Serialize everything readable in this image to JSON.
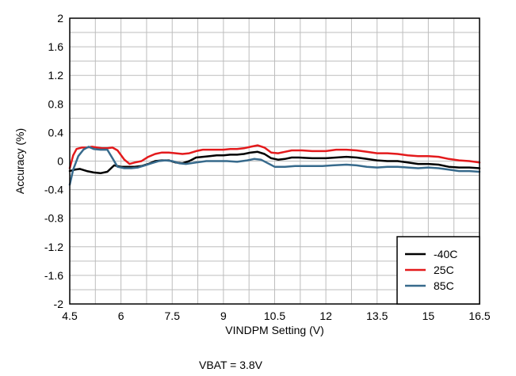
{
  "chart_data": {
    "type": "line",
    "title": "",
    "xlabel": "VINDPM Setting (V)",
    "ylabel": "Accuracy (%)",
    "caption": "VBAT = 3.8V",
    "xlim": [
      4.5,
      16.5
    ],
    "ylim": [
      -2,
      2
    ],
    "xticks": [
      4.5,
      6,
      7.5,
      9,
      10.5,
      12,
      13.5,
      15,
      16.5
    ],
    "yticks": [
      2,
      1.6,
      1.2,
      0.8,
      0.4,
      0,
      -0.4,
      -0.8,
      -1.2,
      -1.6,
      -2
    ],
    "ytick_labels": [
      "2",
      "1.6",
      "1.2",
      "0.8",
      "0.4",
      "0",
      "-0.4",
      "-0.8",
      "-1.2",
      "-1.6",
      "-2"
    ],
    "x_minor_step": 0.75,
    "y_minor_step": 0.2,
    "grid": true,
    "legend_position": "bottom-right",
    "series": [
      {
        "name": "-40C",
        "color": "#000000",
        "points": [
          [
            4.5,
            -0.14
          ],
          [
            4.65,
            -0.12
          ],
          [
            4.8,
            -0.11
          ],
          [
            5.0,
            -0.14
          ],
          [
            5.2,
            -0.16
          ],
          [
            5.4,
            -0.17
          ],
          [
            5.6,
            -0.15
          ],
          [
            5.8,
            -0.06
          ],
          [
            6.0,
            -0.08
          ],
          [
            6.2,
            -0.08
          ],
          [
            6.4,
            -0.08
          ],
          [
            6.6,
            -0.07
          ],
          [
            6.8,
            -0.04
          ],
          [
            7.0,
            0.0
          ],
          [
            7.2,
            0.01
          ],
          [
            7.4,
            0.01
          ],
          [
            7.6,
            -0.02
          ],
          [
            7.8,
            -0.03
          ],
          [
            8.0,
            0.0
          ],
          [
            8.2,
            0.05
          ],
          [
            8.4,
            0.06
          ],
          [
            8.6,
            0.07
          ],
          [
            8.8,
            0.08
          ],
          [
            9.0,
            0.08
          ],
          [
            9.2,
            0.09
          ],
          [
            9.4,
            0.09
          ],
          [
            9.6,
            0.1
          ],
          [
            9.8,
            0.12
          ],
          [
            10.0,
            0.13
          ],
          [
            10.2,
            0.1
          ],
          [
            10.4,
            0.04
          ],
          [
            10.6,
            0.02
          ],
          [
            10.8,
            0.03
          ],
          [
            11.0,
            0.05
          ],
          [
            11.2,
            0.05
          ],
          [
            11.6,
            0.04
          ],
          [
            12.0,
            0.04
          ],
          [
            12.3,
            0.05
          ],
          [
            12.6,
            0.06
          ],
          [
            12.9,
            0.05
          ],
          [
            13.2,
            0.03
          ],
          [
            13.5,
            0.01
          ],
          [
            13.8,
            0.0
          ],
          [
            14.1,
            0.0
          ],
          [
            14.4,
            -0.02
          ],
          [
            14.7,
            -0.04
          ],
          [
            15.0,
            -0.04
          ],
          [
            15.3,
            -0.05
          ],
          [
            15.6,
            -0.08
          ],
          [
            15.9,
            -0.09
          ],
          [
            16.2,
            -0.09
          ],
          [
            16.5,
            -0.1
          ]
        ]
      },
      {
        "name": "25C",
        "color": "#e31a1c",
        "points": [
          [
            4.5,
            -0.1
          ],
          [
            4.6,
            0.08
          ],
          [
            4.7,
            0.17
          ],
          [
            4.85,
            0.19
          ],
          [
            5.0,
            0.19
          ],
          [
            5.15,
            0.2
          ],
          [
            5.3,
            0.19
          ],
          [
            5.45,
            0.18
          ],
          [
            5.6,
            0.18
          ],
          [
            5.75,
            0.19
          ],
          [
            5.9,
            0.15
          ],
          [
            6.1,
            0.02
          ],
          [
            6.25,
            -0.04
          ],
          [
            6.4,
            -0.02
          ],
          [
            6.6,
            0.0
          ],
          [
            6.8,
            0.06
          ],
          [
            7.0,
            0.1
          ],
          [
            7.2,
            0.12
          ],
          [
            7.4,
            0.12
          ],
          [
            7.6,
            0.11
          ],
          [
            7.8,
            0.1
          ],
          [
            8.0,
            0.11
          ],
          [
            8.2,
            0.14
          ],
          [
            8.4,
            0.16
          ],
          [
            8.6,
            0.16
          ],
          [
            8.8,
            0.16
          ],
          [
            9.0,
            0.16
          ],
          [
            9.2,
            0.17
          ],
          [
            9.4,
            0.17
          ],
          [
            9.6,
            0.18
          ],
          [
            9.8,
            0.2
          ],
          [
            10.0,
            0.22
          ],
          [
            10.2,
            0.19
          ],
          [
            10.4,
            0.12
          ],
          [
            10.6,
            0.11
          ],
          [
            10.8,
            0.13
          ],
          [
            11.0,
            0.15
          ],
          [
            11.3,
            0.15
          ],
          [
            11.6,
            0.14
          ],
          [
            12.0,
            0.14
          ],
          [
            12.3,
            0.16
          ],
          [
            12.6,
            0.16
          ],
          [
            12.9,
            0.15
          ],
          [
            13.2,
            0.13
          ],
          [
            13.5,
            0.11
          ],
          [
            13.8,
            0.11
          ],
          [
            14.1,
            0.1
          ],
          [
            14.4,
            0.08
          ],
          [
            14.7,
            0.07
          ],
          [
            15.0,
            0.07
          ],
          [
            15.3,
            0.06
          ],
          [
            15.6,
            0.03
          ],
          [
            15.9,
            0.01
          ],
          [
            16.2,
            0.0
          ],
          [
            16.5,
            -0.02
          ]
        ]
      },
      {
        "name": "85C",
        "color": "#376a8c",
        "points": [
          [
            4.5,
            -0.33
          ],
          [
            4.6,
            -0.12
          ],
          [
            4.75,
            0.07
          ],
          [
            4.9,
            0.16
          ],
          [
            5.05,
            0.2
          ],
          [
            5.2,
            0.17
          ],
          [
            5.4,
            0.16
          ],
          [
            5.6,
            0.16
          ],
          [
            5.75,
            0.04
          ],
          [
            5.9,
            -0.08
          ],
          [
            6.1,
            -0.1
          ],
          [
            6.3,
            -0.1
          ],
          [
            6.5,
            -0.09
          ],
          [
            6.7,
            -0.06
          ],
          [
            6.9,
            -0.03
          ],
          [
            7.1,
            0.0
          ],
          [
            7.3,
            0.01
          ],
          [
            7.5,
            0.0
          ],
          [
            7.7,
            -0.03
          ],
          [
            7.9,
            -0.04
          ],
          [
            8.2,
            -0.02
          ],
          [
            8.5,
            0.0
          ],
          [
            8.8,
            0.0
          ],
          [
            9.1,
            0.0
          ],
          [
            9.4,
            -0.01
          ],
          [
            9.7,
            0.01
          ],
          [
            9.9,
            0.03
          ],
          [
            10.1,
            0.02
          ],
          [
            10.3,
            -0.03
          ],
          [
            10.5,
            -0.08
          ],
          [
            10.8,
            -0.08
          ],
          [
            11.1,
            -0.07
          ],
          [
            11.5,
            -0.07
          ],
          [
            11.9,
            -0.07
          ],
          [
            12.2,
            -0.06
          ],
          [
            12.6,
            -0.05
          ],
          [
            12.9,
            -0.06
          ],
          [
            13.2,
            -0.08
          ],
          [
            13.5,
            -0.09
          ],
          [
            13.8,
            -0.08
          ],
          [
            14.1,
            -0.08
          ],
          [
            14.4,
            -0.09
          ],
          [
            14.7,
            -0.1
          ],
          [
            15.0,
            -0.09
          ],
          [
            15.3,
            -0.1
          ],
          [
            15.6,
            -0.12
          ],
          [
            15.9,
            -0.14
          ],
          [
            16.2,
            -0.14
          ],
          [
            16.5,
            -0.15
          ]
        ]
      }
    ]
  }
}
